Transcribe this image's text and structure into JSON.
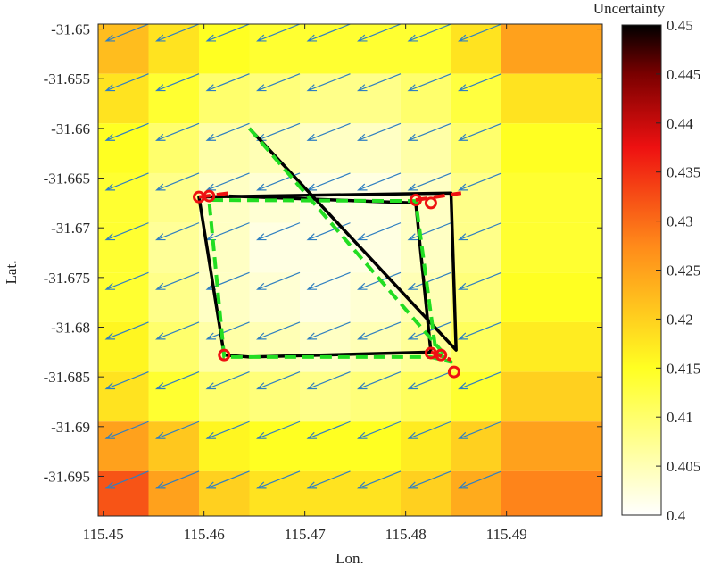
{
  "chart_data": {
    "type": "heatmap",
    "title": "",
    "xlabel": "Lon.",
    "ylabel": "Lat.",
    "xlim": [
      115.4495,
      115.4995
    ],
    "ylim": [
      -31.699,
      -31.6495
    ],
    "x_ticks": [
      "115.45",
      "115.46",
      "115.47",
      "115.48",
      "115.49"
    ],
    "x_tick_values": [
      115.45,
      115.46,
      115.47,
      115.48,
      115.49
    ],
    "y_ticks": [
      "-31.65",
      "-31.655",
      "-31.66",
      "-31.665",
      "-31.67",
      "-31.675",
      "-31.68",
      "-31.685",
      "-31.69",
      "-31.695"
    ],
    "y_tick_values": [
      -31.65,
      -31.655,
      -31.66,
      -31.665,
      -31.67,
      -31.675,
      -31.68,
      -31.685,
      -31.69,
      -31.695
    ],
    "colorbar": {
      "label": "Uncertainty",
      "range": [
        0.4,
        0.45
      ],
      "ticks": [
        "0.4",
        "0.405",
        "0.41",
        "0.415",
        "0.42",
        "0.425",
        "0.43",
        "0.435",
        "0.44",
        "0.445",
        "0.45"
      ],
      "tick_values": [
        0.4,
        0.405,
        0.41,
        0.415,
        0.42,
        0.425,
        0.43,
        0.435,
        0.44,
        0.445,
        0.45
      ],
      "colormap": "hot (reversed)"
    },
    "grid": false,
    "heatmap": {
      "x_edges": [
        115.4495,
        115.4545,
        115.4595,
        115.4645,
        115.4695,
        115.4745,
        115.4795,
        115.4845,
        115.4895,
        115.4995
      ],
      "y_edges": [
        -31.6495,
        -31.6545,
        -31.6595,
        -31.6645,
        -31.6695,
        -31.6745,
        -31.6795,
        -31.6845,
        -31.6895,
        -31.6945,
        -31.699
      ],
      "values": [
        [
          0.422,
          0.418,
          0.415,
          0.414,
          0.414,
          0.414,
          0.414,
          0.418,
          0.425
        ],
        [
          0.418,
          0.414,
          0.41,
          0.409,
          0.408,
          0.408,
          0.41,
          0.413,
          0.418
        ],
        [
          0.415,
          0.41,
          0.406,
          0.405,
          0.404,
          0.404,
          0.406,
          0.41,
          0.415
        ],
        [
          0.414,
          0.408,
          0.404,
          0.403,
          0.402,
          0.402,
          0.404,
          0.408,
          0.414
        ],
        [
          0.414,
          0.407,
          0.404,
          0.402,
          0.402,
          0.402,
          0.404,
          0.408,
          0.414
        ],
        [
          0.414,
          0.408,
          0.404,
          0.403,
          0.402,
          0.403,
          0.405,
          0.409,
          0.415
        ],
        [
          0.416,
          0.41,
          0.406,
          0.405,
          0.404,
          0.405,
          0.407,
          0.411,
          0.417
        ],
        [
          0.418,
          0.414,
          0.41,
          0.409,
          0.408,
          0.409,
          0.411,
          0.414,
          0.42
        ],
        [
          0.425,
          0.421,
          0.416,
          0.415,
          0.415,
          0.415,
          0.417,
          0.42,
          0.425
        ],
        [
          0.432,
          0.425,
          0.42,
          0.418,
          0.418,
          0.418,
          0.42,
          0.424,
          0.428
        ]
      ]
    },
    "vector_field": {
      "x": [
        115.4495,
        115.4545,
        115.4595,
        115.4645,
        115.4695,
        115.4745,
        115.4795,
        115.4845,
        115.4895
      ],
      "y": [
        -31.6495,
        -31.6545,
        -31.6595,
        -31.6645,
        -31.6695,
        -31.6745,
        -31.6795,
        -31.6845,
        -31.6895,
        -31.6945
      ],
      "dx": -0.0042,
      "dy": -0.0017,
      "color": "#2f7fc1"
    },
    "series": [
      {
        "type": "line",
        "style": "solid",
        "color": "#000000",
        "points": [
          [
            115.4645,
            -31.66
          ],
          [
            115.485,
            -31.6823
          ],
          [
            115.4845,
            -31.6665
          ],
          [
            115.4595,
            -31.6669
          ],
          [
            115.462,
            -31.6828
          ],
          [
            115.4645,
            -31.683
          ],
          [
            115.4825,
            -31.6825
          ],
          [
            115.481,
            -31.6675
          ],
          [
            115.4625,
            -31.6668
          ]
        ]
      },
      {
        "type": "line",
        "style": "dashed",
        "color": "#22dd22",
        "points": [
          [
            115.4645,
            -31.66
          ],
          [
            115.4845,
            -31.6835
          ],
          [
            115.4825,
            -31.683
          ],
          [
            115.462,
            -31.683
          ],
          [
            115.4605,
            -31.6672
          ],
          [
            115.481,
            -31.6673
          ],
          [
            115.483,
            -31.6825
          ],
          [
            115.4845,
            -31.6835
          ]
        ]
      },
      {
        "type": "line",
        "style": "dashed",
        "color": "#ee1111",
        "points": [
          [
            115.4595,
            -31.6669
          ],
          [
            115.4625,
            -31.6665
          ]
        ]
      },
      {
        "type": "line",
        "style": "dashed",
        "color": "#ee1111",
        "points": [
          [
            115.481,
            -31.6672
          ],
          [
            115.4855,
            -31.6665
          ]
        ]
      },
      {
        "type": "line",
        "style": "dashed",
        "color": "#ee1111",
        "points": [
          [
            115.4825,
            -31.6825
          ],
          [
            115.4845,
            -31.6833
          ]
        ]
      },
      {
        "type": "scatter",
        "color": "#ee1111",
        "marker": "circle-open",
        "points": [
          [
            115.4595,
            -31.6669
          ],
          [
            115.4605,
            -31.6668
          ],
          [
            115.481,
            -31.6672
          ],
          [
            115.4825,
            -31.6675
          ],
          [
            115.462,
            -31.6828
          ],
          [
            115.4825,
            -31.6826
          ],
          [
            115.4835,
            -31.6828
          ],
          [
            115.4848,
            -31.6845
          ]
        ]
      }
    ]
  }
}
